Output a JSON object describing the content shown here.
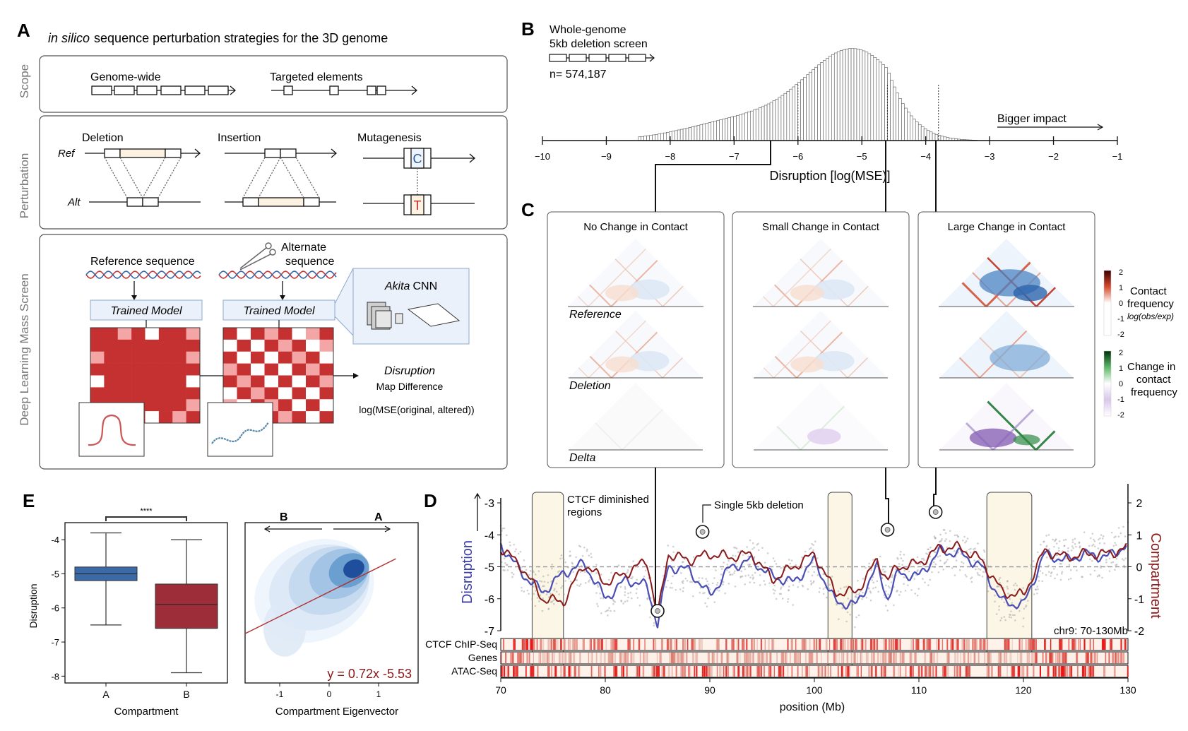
{
  "panel_a": {
    "letter": "A",
    "title_italic": "in silico",
    "title_rest": "sequence perturbation strategies for the 3D genome",
    "row_scope": "Scope",
    "row_perturbation": "Perturbation",
    "row_screen": "Deep Learning Mass Screen",
    "genome_wide": "Genome-wide",
    "targeted": "Targeted elements",
    "deletion": "Deletion",
    "insertion": "Insertion",
    "mutagenesis": "Mutagenesis",
    "ref": "Ref",
    "alt": "Alt",
    "base_ref": "C",
    "base_alt": "T",
    "ref_seq": "Reference sequence",
    "alt_seq_1": "Alternate",
    "alt_seq_2": "sequence",
    "trained_model_1": "Trained Model",
    "trained_model_2": "Trained Model",
    "akita_italic": "Akita",
    "akita_rest": "CNN",
    "disruption": "Disruption",
    "map_diff": "Map Difference",
    "formula": "log(MSE(original, altered))"
  },
  "panel_b": {
    "letter": "B",
    "line1": "Whole-genome",
    "line2": "5kb deletion screen",
    "n_label": "n= 574,187",
    "bigger": "Bigger impact",
    "xlabel": "Disruption [log(MSE)]",
    "ticks": [
      "−10",
      "−9",
      "−8",
      "−7",
      "−6",
      "−5",
      "−4",
      "−3",
      "−2",
      "−1"
    ]
  },
  "panel_c": {
    "letter": "C",
    "titles": [
      "No Change in Contact",
      "Small Change in Contact",
      "Large Change in Contact"
    ],
    "row_reference": "Reference",
    "row_deletion": "Deletion",
    "row_delta": "Delta",
    "cb1_ticks": [
      "2",
      "1",
      "0",
      "-1",
      "-2"
    ],
    "cb1_title_1": "Contact",
    "cb1_title_2": "frequency",
    "cb1_title_3": "log(obs/exp)",
    "cb2_ticks": [
      "2",
      "1",
      "0",
      "-1",
      "-2"
    ],
    "cb2_title_1": "Change in",
    "cb2_title_2": "contact",
    "cb2_title_3": "frequency"
  },
  "panel_d": {
    "letter": "D",
    "ctcf_1": "CTCF diminished",
    "ctcf_2": "regions",
    "single": "Single 5kb deletion",
    "ylabel_left": "Disruption",
    "ylabel_right": "Compartment",
    "region": "chr9: 70-130Mb",
    "track_ctcf": "CTCF ChIP-Seq",
    "track_genes": "Genes",
    "track_atac": "ATAC-Seq",
    "xlabel": "position (Mb)",
    "yticks_left": [
      "-3",
      "-4",
      "-5",
      "-6",
      "-7"
    ],
    "yticks_right": [
      "2",
      "1",
      "0",
      "-1",
      "-2"
    ],
    "xticks": [
      "70",
      "80",
      "90",
      "100",
      "110",
      "120",
      "130"
    ],
    "colors": {
      "disruption": "#4b4fb5",
      "compartment": "#8b1a1a"
    }
  },
  "panel_e": {
    "letter": "E",
    "sig": "****",
    "ylabel": "Disruption",
    "xlabel": "Compartment",
    "box_labels": [
      "A",
      "B"
    ],
    "yticks": [
      "-4",
      "-5",
      "-6",
      "-7",
      "-8"
    ],
    "dir_b": "B",
    "dir_a": "A",
    "kde_xlabel": "Compartment Eigenvector",
    "kde_xticks": [
      "-1",
      "0",
      "1"
    ],
    "equation": "y = 0.72x -5.53",
    "colors": {
      "box_a": "#3a6aa8",
      "box_b": "#9e2d3a"
    }
  },
  "chart_data": [
    {
      "type": "bar",
      "title": "",
      "xlabel": "Disruption [log(MSE)]",
      "xlim": [
        -10,
        -1
      ],
      "description_counts_relative": true,
      "peak_x": -5.1
    },
    {
      "type": "line",
      "xlabel": "position (Mb)",
      "ylabel": "Disruption",
      "ylabel_right": "Compartment",
      "xlim": [
        70,
        130
      ],
      "ylim": [
        -7,
        -3
      ],
      "ylim_right": [
        -2,
        2
      ],
      "series": [
        {
          "name": "Disruption",
          "x": [
            70,
            72,
            74,
            76,
            78,
            80,
            82,
            84,
            85,
            86,
            88,
            90,
            92,
            94,
            96,
            98,
            100,
            102,
            104,
            106,
            107,
            108,
            110,
            112,
            114,
            116,
            118,
            120,
            122,
            124,
            126,
            128,
            130
          ],
          "y": [
            -4.3,
            -5.2,
            -5.8,
            -5.2,
            -4.9,
            -6.0,
            -5.4,
            -5.6,
            -6.8,
            -5.0,
            -5.1,
            -5.9,
            -5.0,
            -4.8,
            -5.3,
            -5.5,
            -4.8,
            -6.1,
            -6.2,
            -5.0,
            -6.0,
            -5.2,
            -5.3,
            -4.5,
            -4.6,
            -5.0,
            -6.1,
            -6.2,
            -4.6,
            -4.8,
            -4.6,
            -4.7,
            -4.3
          ]
        },
        {
          "name": "Compartment",
          "x": [
            70,
            72,
            74,
            76,
            78,
            80,
            82,
            84,
            85,
            86,
            88,
            90,
            92,
            94,
            96,
            98,
            100,
            102,
            104,
            106,
            107,
            108,
            110,
            112,
            114,
            116,
            118,
            120,
            122,
            124,
            126,
            128,
            130
          ],
          "y": [
            -4.4,
            -5.0,
            -6.0,
            -6.1,
            -4.9,
            -5.5,
            -5.2,
            -4.8,
            -6.6,
            -4.6,
            -4.8,
            -4.6,
            -4.7,
            -4.6,
            -5.4,
            -5.0,
            -4.6,
            -5.8,
            -5.8,
            -4.8,
            -5.4,
            -5.0,
            -4.9,
            -4.4,
            -4.4,
            -4.8,
            -5.8,
            -5.9,
            -4.5,
            -4.7,
            -4.6,
            -4.6,
            -4.4
          ]
        }
      ]
    },
    {
      "type": "box",
      "xlabel": "Compartment",
      "ylabel": "Disruption",
      "categories": [
        "A",
        "B"
      ],
      "ylim": [
        -8.2,
        -3.5
      ],
      "boxes": [
        {
          "name": "A",
          "whisker_low": -6.5,
          "q1": -5.2,
          "median": -5.0,
          "q3": -4.8,
          "whisker_high": -3.8
        },
        {
          "name": "B",
          "whisker_low": -7.9,
          "q1": -6.6,
          "median": -5.9,
          "q3": -5.3,
          "whisker_high": -4.0
        }
      ]
    },
    {
      "type": "scatter",
      "xlabel": "Compartment Eigenvector",
      "xlim": [
        -1.7,
        1.8
      ],
      "ylim": [
        -8.2,
        -3.5
      ],
      "fit": {
        "slope": 0.72,
        "intercept": -5.53
      }
    }
  ]
}
